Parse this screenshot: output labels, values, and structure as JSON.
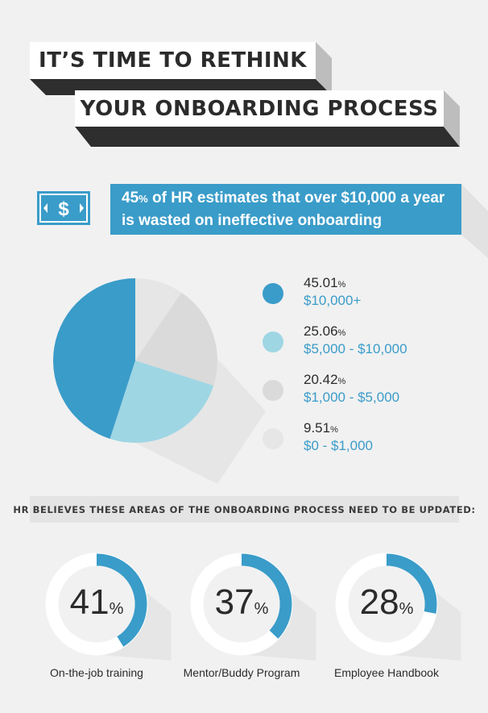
{
  "header": {
    "line1": "IT’S TIME TO RETHINK",
    "line2": "YOUR ONBOARDING PROCESS"
  },
  "banner": {
    "pct_number": "45",
    "pct_unit": "%",
    "line1_rest": " of HR estimates that over $10,000 a year",
    "line2": "is wasted on ineffective onboarding",
    "icon": "dollar-bill-icon"
  },
  "colors": {
    "accent": "#3a9cc9",
    "light_blue": "#9fd6e4",
    "grey": "#dadada",
    "light_grey": "#e6e6e6",
    "text": "#2b2b2b",
    "background": "#f1f1f1"
  },
  "chart_data": [
    {
      "type": "pie",
      "slices": [
        {
          "value": 45.01,
          "pct_label": "45.01",
          "unit": "%",
          "range_label": "$10,000+",
          "color": "#3a9cc9"
        },
        {
          "value": 25.06,
          "pct_label": "25.06",
          "unit": "%",
          "range_label": "$5,000 - $10,000",
          "color": "#9fd6e4"
        },
        {
          "value": 20.42,
          "pct_label": "20.42",
          "unit": "%",
          "range_label": "$1,000 - $5,000",
          "color": "#dadada"
        },
        {
          "value": 9.51,
          "pct_label": "9.51",
          "unit": "%",
          "range_label": "$0 - $1,000",
          "color": "#e6e6e6"
        }
      ],
      "legend_position": "right"
    },
    {
      "type": "donut",
      "title": "HR BELIEVES THESE AREAS OF THE ONBOARDING PROCESS NEED TO BE UPDATED:",
      "items": [
        {
          "value": 41,
          "value_label": "41",
          "unit": "%",
          "label": "On-the-job training"
        },
        {
          "value": 37,
          "value_label": "37",
          "unit": "%",
          "label": "Mentor/Buddy Program"
        },
        {
          "value": 28,
          "value_label": "28",
          "unit": "%",
          "label": "Employee Handbook"
        }
      ]
    }
  ]
}
